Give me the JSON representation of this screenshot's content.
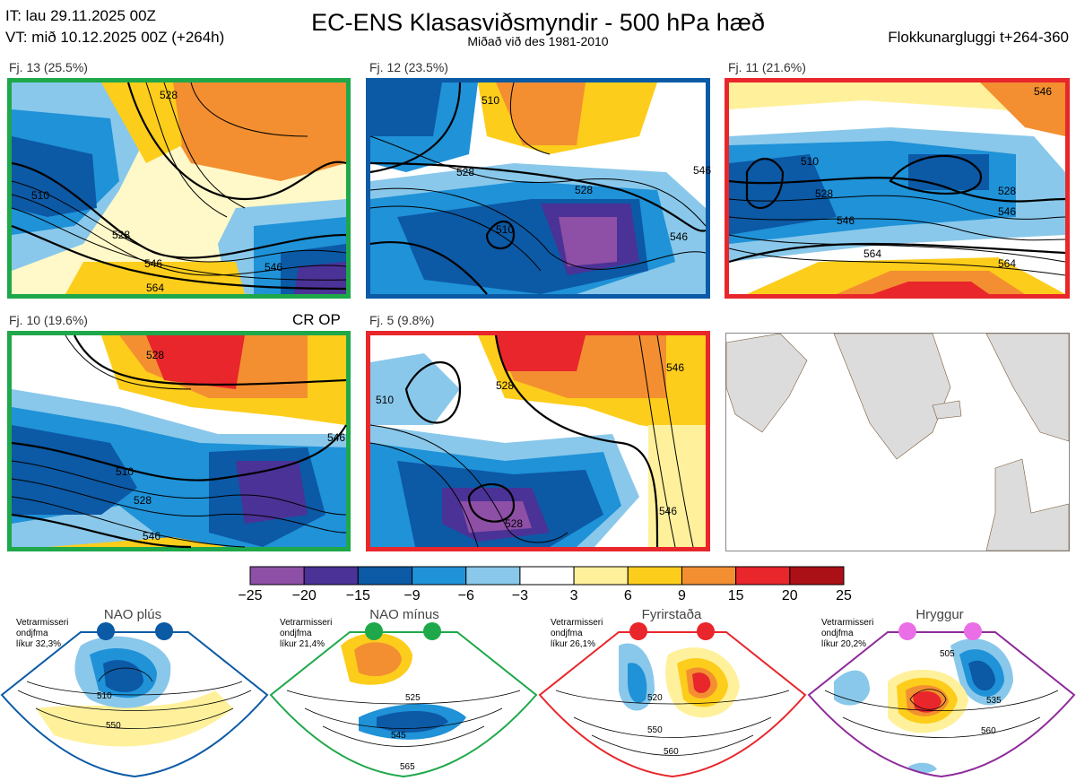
{
  "header": {
    "it_line": "IT: lau 29.11.2025 00Z",
    "vt_line": "VT: mið 10.12.2025 00Z  (+264h)",
    "title": "EC-ENS Klasasviðsmyndir - 500 hPa hæð",
    "subtitle": "Miðað við des 1981-2010",
    "window": "Flokkunargluggi t+264-360"
  },
  "panels": [
    {
      "label": "Fj. 13 (25.5%)",
      "border": "#1ea84a",
      "regime": "NAO mínus"
    },
    {
      "label": "Fj. 12 (23.5%)",
      "border": "#0b5aa6",
      "regime": "NAO plús"
    },
    {
      "label": "Fj. 11 (21.6%)",
      "border": "#e8262b",
      "regime": "Fyrirstaða"
    },
    {
      "label": "Fj. 10 (19.6%)",
      "border": "#1ea84a",
      "regime": "NAO mínus",
      "tag": "CR OP"
    },
    {
      "label": "Fj. 5 (9.8%)",
      "border": "#e8262b",
      "regime": "Fyrirstaða"
    }
  ],
  "contour_labels": {
    "p1": [
      "528",
      "510",
      "528",
      "546",
      "564",
      "546"
    ],
    "p2": [
      "510",
      "528",
      "510",
      "528",
      "546",
      "546"
    ],
    "p3": [
      "546",
      "510",
      "528",
      "546",
      "528",
      "546",
      "564",
      "564"
    ],
    "p4": [
      "528",
      "510",
      "528",
      "546",
      "546"
    ],
    "p5": [
      "510",
      "528",
      "528",
      "546",
      "546"
    ]
  },
  "colorbar": {
    "ticks": [
      "−25",
      "−20",
      "−15",
      "−9",
      "−6",
      "−3",
      "3",
      "6",
      "9",
      "15",
      "20",
      "25"
    ],
    "colors": [
      "#8e4fa6",
      "#4b3296",
      "#0c59a5",
      "#1f92d8",
      "#89c8ea",
      "#ffffff",
      "#fff19c",
      "#fdcd1b",
      "#f38f31",
      "#e8262b",
      "#ac1017"
    ]
  },
  "regimes": [
    {
      "name": "NAO plús",
      "note": [
        "Vetrarmisseri",
        "ondjfma",
        "líkur 32,3%"
      ],
      "color": "#0b5aa6",
      "labels": [
        "510",
        "550"
      ]
    },
    {
      "name": "NAO mínus",
      "note": [
        "Vetrarmisseri",
        "ondjfma",
        "líkur 21,4%"
      ],
      "color": "#1ea84a",
      "labels": [
        "525",
        "545",
        "565"
      ]
    },
    {
      "name": "Fyrirstaða",
      "note": [
        "Vetrarmisseri",
        "ondjfma",
        "líkur 26,1%"
      ],
      "color": "#e8262b",
      "labels": [
        "520",
        "550",
        "560"
      ]
    },
    {
      "name": "Hryggur",
      "note": [
        "Vetrarmisseri",
        "ondjfma",
        "líkur 20,2%"
      ],
      "color": "#ea6ee6",
      "labels": [
        "505",
        "535",
        "560"
      ]
    }
  ]
}
